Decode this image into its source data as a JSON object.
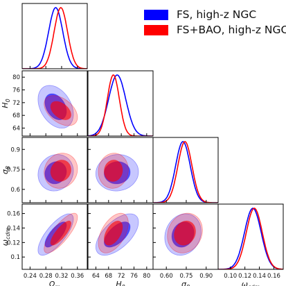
{
  "chart_data": {
    "type": "corner",
    "legend": [
      {
        "label": "FS, high-z NGC",
        "color": "#0000ff"
      },
      {
        "label": "FS+BAO, high-z NGC",
        "color": "#ff0000"
      }
    ],
    "parameters": [
      {
        "label": "Ω_m",
        "range": [
          0.22,
          0.385
        ],
        "ticks": [
          0.24,
          0.28,
          0.32,
          0.36
        ],
        "tick_labels": [
          "0.24",
          "0.28",
          "0.32",
          "0.36"
        ]
      },
      {
        "label": "H_0",
        "range": [
          61.5,
          82
        ],
        "ticks": [
          64,
          68,
          72,
          76,
          80
        ],
        "tick_labels": [
          "64",
          "68",
          "72",
          "76",
          "80"
        ]
      },
      {
        "label": "σ_8",
        "range": [
          0.5,
          0.99
        ],
        "ticks": [
          0.6,
          0.75,
          0.9
        ],
        "tick_labels": [
          "0.60",
          "0.75",
          "0.90"
        ]
      },
      {
        "label": "ω_cdm",
        "range": [
          0.083,
          0.173
        ],
        "ticks": [
          0.1,
          0.12,
          0.14,
          0.16
        ],
        "tick_labels": [
          "0.10",
          "0.12",
          "0.14",
          "0.16"
        ]
      }
    ],
    "y_ticks": {
      "H_0": {
        "ticks": [
          64,
          68,
          72,
          76,
          80
        ],
        "tick_labels": [
          "64",
          "68",
          "72",
          "76",
          "80"
        ]
      },
      "σ_8": {
        "ticks": [
          0.6,
          0.75,
          0.9
        ],
        "tick_labels": [
          "0.6",
          "0.75",
          "0.9"
        ]
      },
      "ω_cdm": {
        "ticks": [
          0.1,
          0.12,
          0.14,
          0.16
        ],
        "tick_labels": [
          "0.1",
          "0.12",
          "0.14",
          "0.16"
        ]
      }
    },
    "series": [
      {
        "name": "FS, high-z NGC",
        "color": "#0000ff",
        "mean": [
          0.305,
          70.7,
          0.725,
          0.131
        ],
        "sigma": [
          0.018,
          2.7,
          0.055,
          0.0115
        ],
        "corr": [
          [
            1,
            -0.35,
            0.1,
            0.75
          ],
          [
            -0.35,
            1,
            0.05,
            0.6
          ],
          [
            0.1,
            0.05,
            1,
            0.15
          ],
          [
            0.75,
            0.6,
            0.15,
            1
          ]
        ]
      },
      {
        "name": "FS+BAO, high-z NGC",
        "color": "#ff0000",
        "mean": [
          0.318,
          69.5,
          0.74,
          0.133
        ],
        "sigma": [
          0.017,
          1.9,
          0.053,
          0.011
        ],
        "corr": [
          [
            1,
            -0.45,
            0.1,
            0.8
          ],
          [
            -0.45,
            1,
            0.05,
            0.5
          ],
          [
            0.1,
            0.05,
            1,
            0.15
          ],
          [
            0.8,
            0.5,
            0.15,
            1
          ]
        ]
      }
    ]
  }
}
